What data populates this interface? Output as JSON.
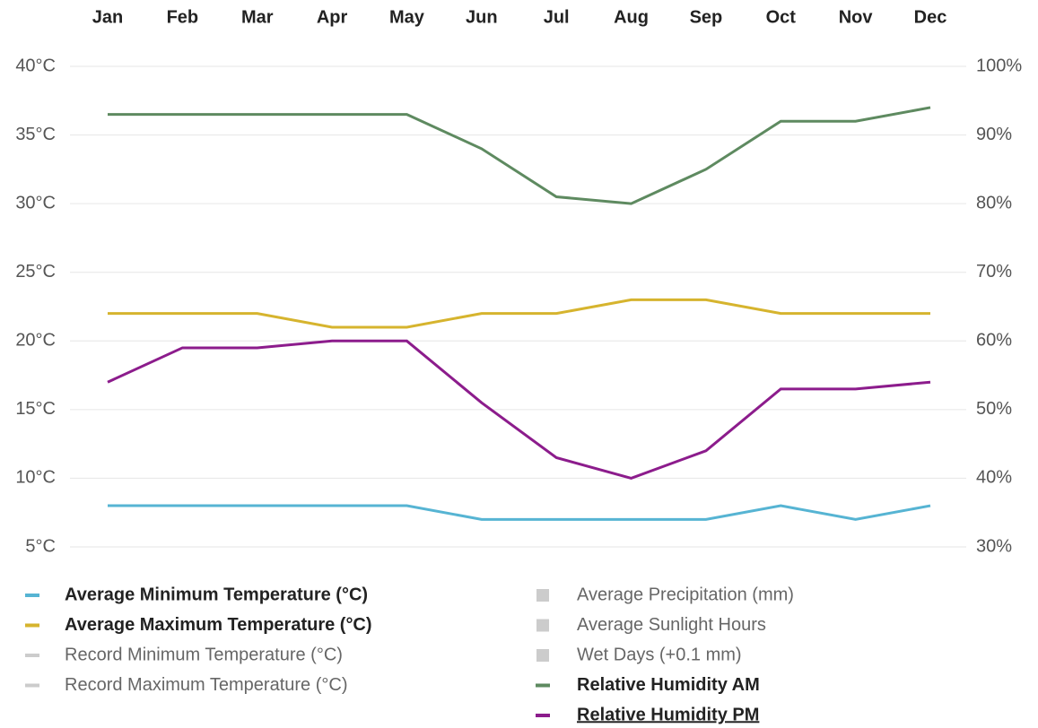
{
  "chart_data": {
    "type": "line",
    "categories": [
      "Jan",
      "Feb",
      "Mar",
      "Apr",
      "May",
      "Jun",
      "Jul",
      "Aug",
      "Sep",
      "Oct",
      "Nov",
      "Dec"
    ],
    "ylim": [
      5,
      40
    ],
    "yticks": [
      {
        "value": 5,
        "label": "5°C"
      },
      {
        "value": 10,
        "label": "10°C"
      },
      {
        "value": 15,
        "label": "15°C"
      },
      {
        "value": 20,
        "label": "20°C"
      },
      {
        "value": 25,
        "label": "25°C"
      },
      {
        "value": 30,
        "label": "30°C"
      },
      {
        "value": 35,
        "label": "35°C"
      },
      {
        "value": 40,
        "label": "40°C"
      }
    ],
    "y2lim": [
      30,
      100
    ],
    "y2ticks": [
      {
        "value": 30,
        "label": "30%"
      },
      {
        "value": 40,
        "label": "40%"
      },
      {
        "value": 50,
        "label": "50%"
      },
      {
        "value": 60,
        "label": "60%"
      },
      {
        "value": 70,
        "label": "70%"
      },
      {
        "value": 80,
        "label": "80%"
      },
      {
        "value": 90,
        "label": "90%"
      },
      {
        "value": 100,
        "label": "100%"
      }
    ],
    "grid": true,
    "legend": "bottom",
    "series": [
      {
        "name": "Average Minimum Temperature (°C)",
        "color": "#56b4d3",
        "kind": "line",
        "values": [
          8,
          8,
          8,
          8,
          8,
          7,
          7,
          7,
          7,
          8,
          7,
          8
        ]
      },
      {
        "name": "Average Maximum Temperature (°C)",
        "color": "#d6b42e",
        "kind": "line",
        "values": [
          22,
          22,
          22,
          21,
          21,
          22,
          22,
          23,
          23,
          22,
          22,
          22
        ]
      },
      {
        "name": "Record Minimum Temperature (°C)",
        "color": "#cccccc",
        "kind": "line",
        "hidden": true
      },
      {
        "name": "Record Maximum Temperature (°C)",
        "color": "#cccccc",
        "kind": "line",
        "hidden": true
      },
      {
        "name": "Average Precipitation (mm)",
        "color": "#cccccc",
        "kind": "bar",
        "hidden": true
      },
      {
        "name": "Average Sunlight Hours",
        "color": "#cccccc",
        "kind": "bar",
        "hidden": true
      },
      {
        "name": "Wet Days (+0.1 mm)",
        "color": "#cccccc",
        "kind": "bar",
        "hidden": true
      },
      {
        "name": "Relative Humidity AM",
        "color": "#5e8a60",
        "kind": "line",
        "axis": "y2",
        "values": [
          93,
          93,
          93,
          93,
          93,
          88,
          81,
          80,
          85,
          92,
          92,
          94
        ]
      },
      {
        "name": "Relative Humidity PM",
        "color": "#8c1c8c",
        "kind": "line",
        "axis": "y2",
        "values": [
          54,
          59,
          59,
          60,
          60,
          51,
          43,
          40,
          44,
          53,
          53,
          54
        ]
      }
    ]
  }
}
